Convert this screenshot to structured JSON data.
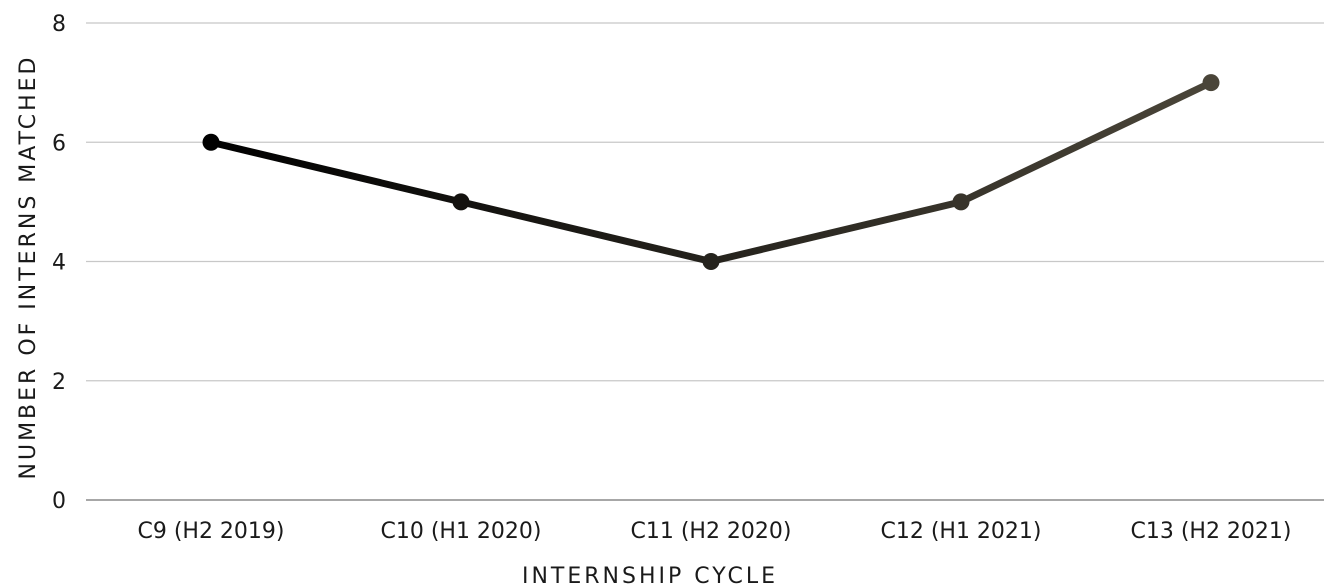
{
  "chart_data": {
    "type": "line",
    "title": "",
    "xlabel": "INTERNSHIP CYCLE",
    "ylabel": "NUMBER OF INTERNS MATCHED",
    "categories": [
      "C9 (H2 2019)",
      "C10 (H1 2020)",
      "C11 (H2 2020)",
      "C12 (H1 2021)",
      "C13 (H2 2021)"
    ],
    "series": [
      {
        "values": [
          6,
          5,
          4,
          5,
          7
        ],
        "color_start": "#000000",
        "color_end": "#4a4539"
      }
    ],
    "ylim": [
      0,
      8
    ],
    "yticks": [
      0,
      2,
      4,
      6,
      8
    ],
    "grid": true,
    "legend": "none"
  }
}
